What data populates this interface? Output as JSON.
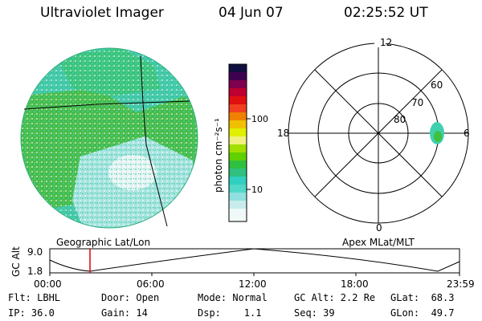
{
  "header": {
    "title": "Ultraviolet Imager",
    "date": "04 Jun 07",
    "time": "02:25:52 UT"
  },
  "colorbar": {
    "label": "photon cm⁻²s⁻¹",
    "ticks": [
      "100",
      "10"
    ]
  },
  "polar_plot": {
    "mlt_labels": [
      "12",
      "18",
      "6",
      "0"
    ],
    "mlat_labels": [
      "60",
      "70",
      "80"
    ]
  },
  "panel_labels": {
    "geographic": "Geographic Lat/Lon",
    "apex": "Apex MLat/MLT"
  },
  "altitude_plot": {
    "ylabel": "GC Alt",
    "ymax": "9.0",
    "ymin": "1.8",
    "xticks": [
      "00:00",
      "06:00",
      "12:00",
      "18:00",
      "23:59"
    ]
  },
  "status": {
    "row1": {
      "flt": "Flt: LBHL",
      "door": "Door: Open",
      "mode": "Mode: Normal",
      "gcalt": "GC Alt: 2.2 Re",
      "glat": "GLat:  68.3"
    },
    "row2": {
      "ip": "IP: 36.0",
      "gain": "Gain: 14",
      "dsp": "Dsp:    1.1",
      "seq": "Seq: 39",
      "glon": "GLon:  49.7"
    }
  },
  "colors": {
    "green": "#40c040",
    "cyan": "#40d0b0",
    "lightcyan": "#a8e8e8",
    "marker": "#e00000"
  }
}
